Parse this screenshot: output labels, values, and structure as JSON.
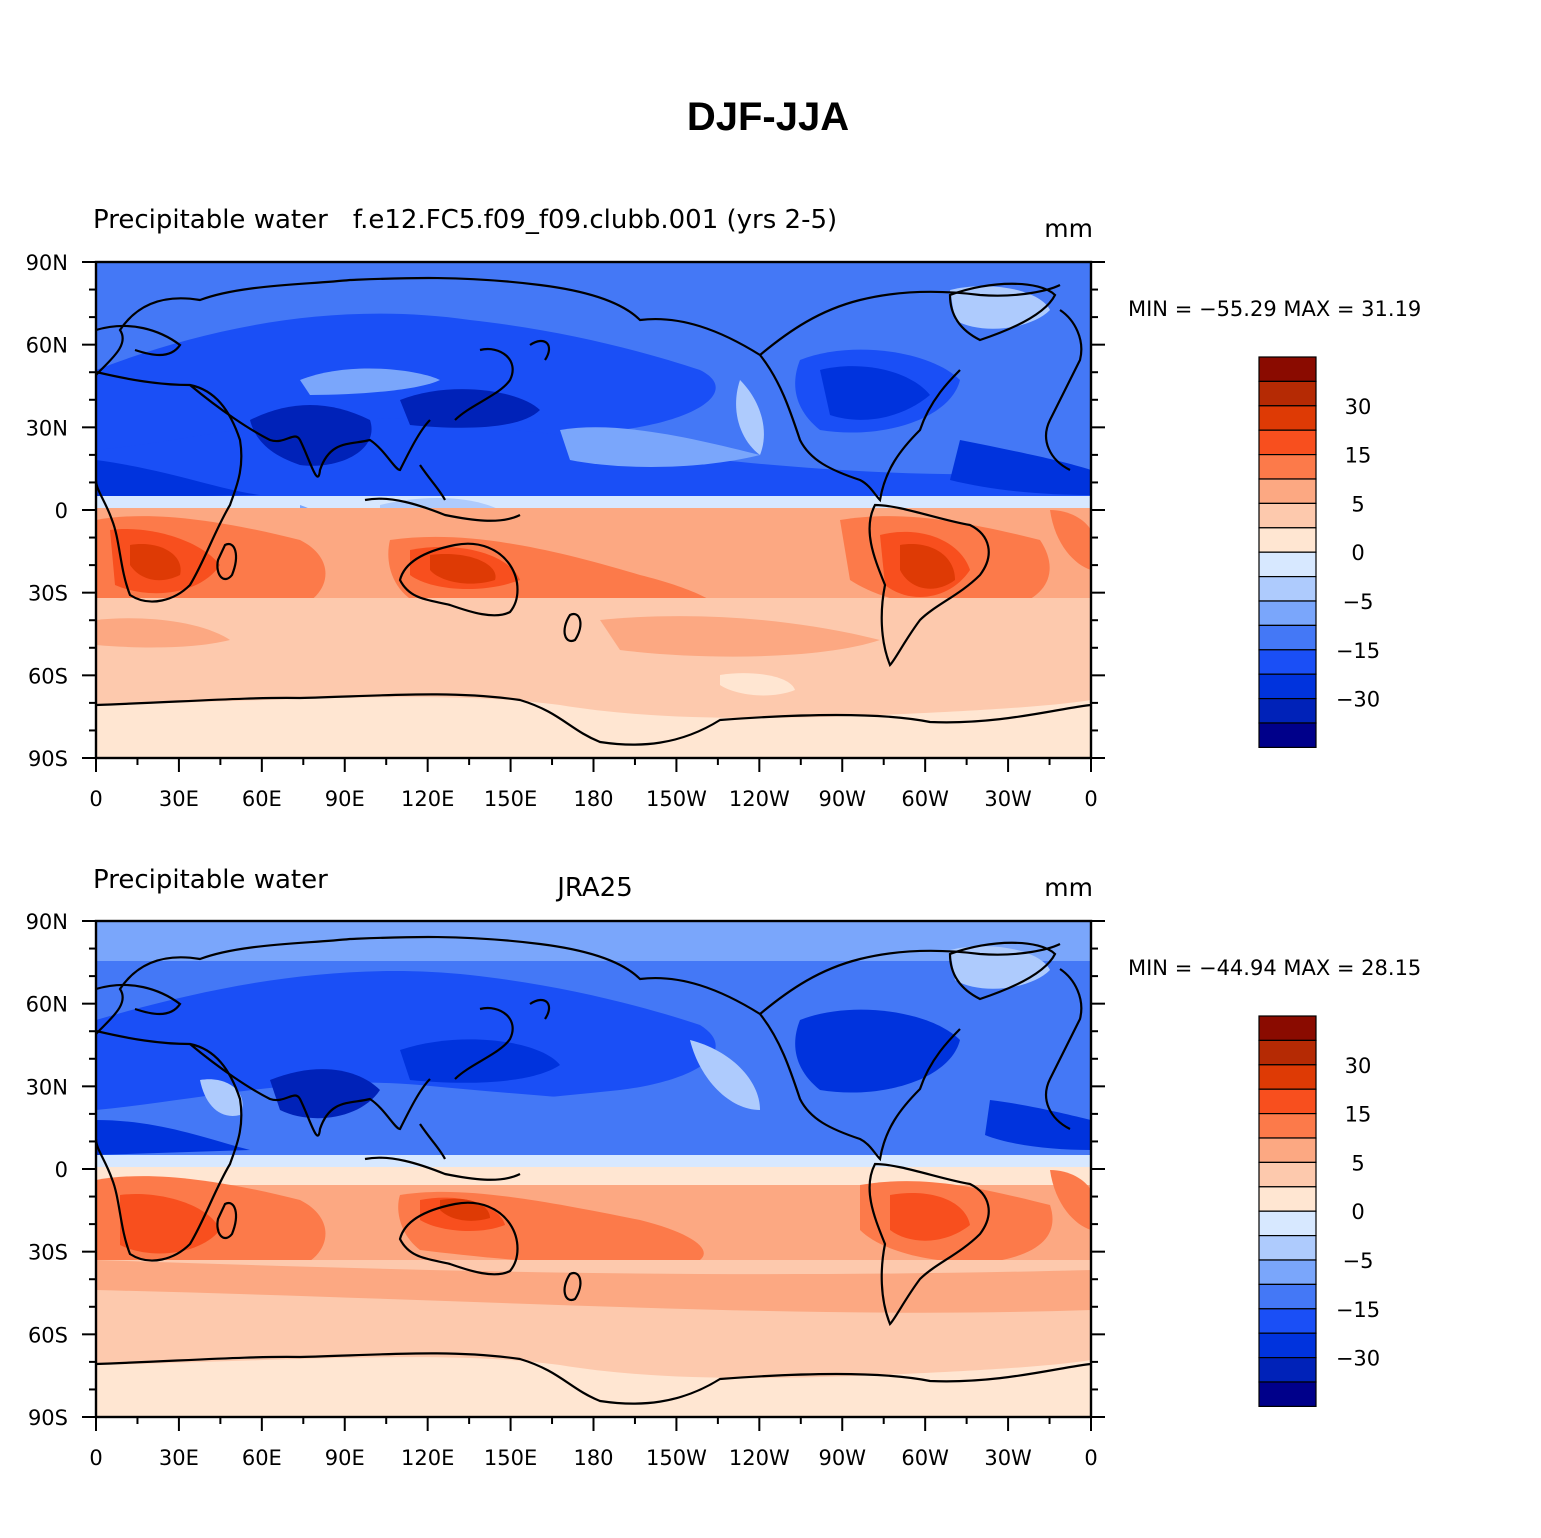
{
  "figure_title": "DJF-JJA",
  "palette": [
    "#00008a",
    "#0022b8",
    "#0033dd",
    "#1a4ff6",
    "#4478f6",
    "#7aa6fb",
    "#aecbfd",
    "#d7e8ff",
    "#ffe6d2",
    "#fdc9ad",
    "#fca882",
    "#fc7a4a",
    "#f84f1e",
    "#de3a05",
    "#b52a04",
    "#8a0b00"
  ],
  "colorbar_labels": [
    "30",
    "15",
    "5",
    "0",
    "−5",
    "−15",
    "−30"
  ],
  "lat_labels": [
    "90N",
    "60N",
    "30N",
    "0",
    "30S",
    "60S",
    "90S"
  ],
  "lon_labels": [
    "0",
    "30E",
    "60E",
    "90E",
    "120E",
    "150E",
    "180",
    "150W",
    "120W",
    "90W",
    "60W",
    "30W",
    "0"
  ],
  "panels": [
    {
      "left_label": "Precipitable water",
      "center_label": "f.e12.FC5.f09_f09.clubb.001 (yrs 2-5)",
      "units": "mm",
      "stats": "MIN = −55.29  MAX =   31.19"
    },
    {
      "left_label": "Precipitable water",
      "center_label": "JRA25",
      "units": "mm",
      "stats": "MIN = −44.94  MAX =   28.15"
    }
  ]
}
